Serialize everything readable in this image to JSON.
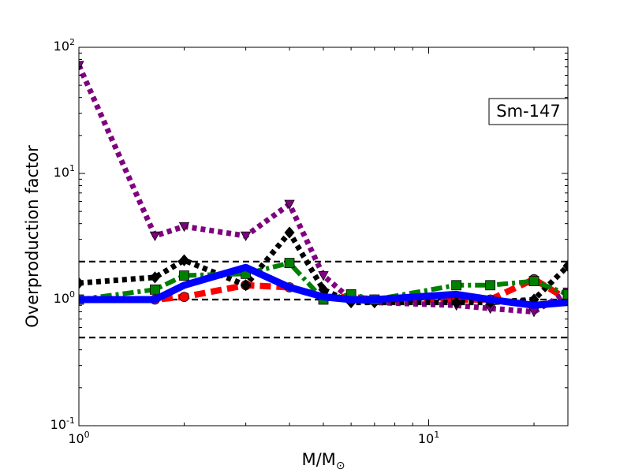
{
  "chart_data": {
    "type": "line",
    "xlabel": "M/M",
    "xlabel_sub": "⊙",
    "ylabel": "Overproduction factor",
    "xscale": "log",
    "yscale": "log",
    "xlim": [
      1,
      25
    ],
    "ylim": [
      0.1,
      100
    ],
    "x_ticks": [
      {
        "value": 1,
        "base": "10",
        "exp": "0"
      },
      {
        "value": 10,
        "base": "10",
        "exp": "1"
      }
    ],
    "y_ticks": [
      {
        "value": 0.1,
        "base": "10",
        "exp": "-1"
      },
      {
        "value": 1,
        "base": "10",
        "exp": "0"
      },
      {
        "value": 10,
        "base": "10",
        "exp": "1"
      },
      {
        "value": 100,
        "base": "10",
        "exp": "2"
      }
    ],
    "annotation": {
      "text": "Sm-147",
      "position": "upper-right"
    },
    "reference_lines": [
      {
        "y": 2.0,
        "color": "#000000",
        "style": "dashed"
      },
      {
        "y": 1.0,
        "color": "#000000",
        "style": "dashed"
      },
      {
        "y": 0.5,
        "color": "#000000",
        "style": "dashed"
      }
    ],
    "series": [
      {
        "color": "#ff0000",
        "linestyle": "dashed",
        "marker": "circle",
        "x": [
          1,
          1.65,
          2,
          3,
          4,
          5,
          6,
          7,
          12,
          15,
          20,
          25
        ],
        "y": [
          1.0,
          1.0,
          1.05,
          1.3,
          1.25,
          1.05,
          1.05,
          1.0,
          1.0,
          1.0,
          1.45,
          1.0
        ]
      },
      {
        "color": "#800080",
        "linestyle": "dotted",
        "marker": "triangle-down",
        "x": [
          1,
          1.65,
          2,
          3,
          4,
          5,
          6,
          7,
          12,
          15,
          20,
          25
        ],
        "y": [
          72,
          3.2,
          3.8,
          3.2,
          5.7,
          1.55,
          1.0,
          0.95,
          0.9,
          0.85,
          0.8,
          1.15
        ]
      },
      {
        "color": "#000000",
        "linestyle": "dotted",
        "marker": "diamond",
        "x": [
          1,
          1.65,
          2,
          3,
          4,
          5,
          6,
          7,
          12,
          15,
          20,
          25
        ],
        "y": [
          1.35,
          1.5,
          2.05,
          1.3,
          3.4,
          1.2,
          0.95,
          0.95,
          0.95,
          0.95,
          1.0,
          1.85
        ]
      },
      {
        "color": "#008000",
        "linestyle": "dashdot",
        "marker": "square",
        "x": [
          1,
          1.65,
          2,
          3,
          4,
          5,
          6,
          7,
          12,
          15,
          20,
          25
        ],
        "y": [
          1.0,
          1.2,
          1.55,
          1.6,
          1.95,
          1.0,
          1.1,
          1.0,
          1.3,
          1.3,
          1.4,
          1.1
        ]
      },
      {
        "color": "#0000ff",
        "linestyle": "solid",
        "marker": "none",
        "x": [
          1,
          1.65,
          2,
          3,
          4,
          5,
          6,
          7,
          12,
          15,
          20,
          25
        ],
        "y": [
          1.0,
          1.0,
          1.3,
          1.8,
          1.25,
          1.05,
          1.0,
          1.0,
          1.1,
          1.0,
          0.9,
          0.95
        ]
      }
    ]
  }
}
